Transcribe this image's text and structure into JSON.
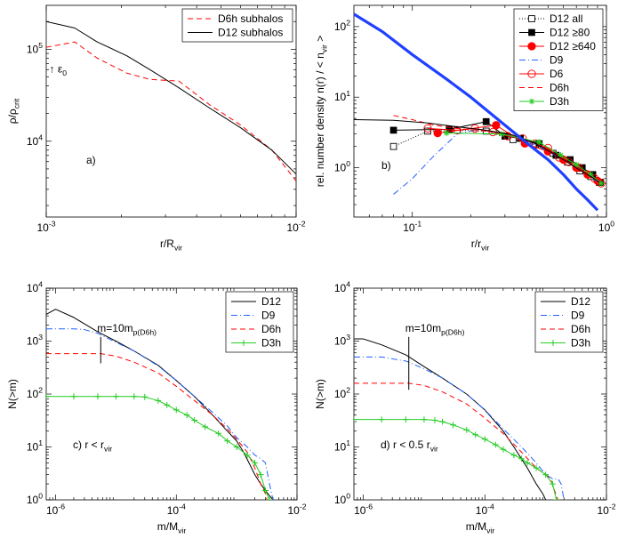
{
  "chart_data": [
    {
      "id": "a",
      "type": "line",
      "xscale": "log",
      "yscale": "log",
      "xlim": [
        0.001,
        0.01
      ],
      "ylim": [
        1500,
        300000
      ],
      "xlabel": "r/R_vir",
      "ylabel": "ρ/ρ_crit",
      "xticks": [
        {
          "v": 0.001,
          "label": "10^-3"
        },
        {
          "v": 0.01,
          "label": "10^-2"
        }
      ],
      "yticks": [
        {
          "v": 10000,
          "label": "10^4"
        },
        {
          "v": 100000,
          "label": "10^5"
        }
      ],
      "panel_label": "a)",
      "legend": "top-right",
      "annotations": [
        {
          "text": "↑ ε_0",
          "x": 0.00103,
          "y": 56000
        }
      ],
      "series": [
        {
          "name": "D6h subhalos",
          "color": "#ff0000",
          "dash": "6,4",
          "width": 1,
          "marker": "none",
          "x": [
            0.001,
            0.0013,
            0.0016,
            0.0021,
            0.0026,
            0.0034,
            0.0045,
            0.006,
            0.008,
            0.01
          ],
          "y": [
            105000,
            120000,
            80000,
            55000,
            47000,
            45000,
            25000,
            15000,
            8000,
            3700
          ]
        },
        {
          "name": "D12 subhalos",
          "color": "#000000",
          "dash": "",
          "width": 1,
          "marker": "none",
          "x": [
            0.001,
            0.0013,
            0.0016,
            0.0021,
            0.0026,
            0.0034,
            0.0045,
            0.006,
            0.008,
            0.01
          ],
          "y": [
            200000,
            170000,
            120000,
            85000,
            60000,
            38000,
            23000,
            14000,
            8000,
            4400
          ]
        }
      ]
    },
    {
      "id": "b",
      "type": "line",
      "xscale": "log",
      "yscale": "log",
      "xlim": [
        0.05,
        1
      ],
      "ylim": [
        0.2,
        200
      ],
      "xlabel": "r/r_vir",
      "ylabel": "rel. number density  n(r) / < n_vir >",
      "xticks": [
        {
          "v": 0.1,
          "label": "10^-1"
        },
        {
          "v": 1,
          "label": "10^0"
        }
      ],
      "yticks": [
        {
          "v": 1,
          "label": "10^0"
        },
        {
          "v": 10,
          "label": "10^1"
        },
        {
          "v": 100,
          "label": "10^2"
        }
      ],
      "panel_label": "b)",
      "legend": "top-right",
      "series": [
        {
          "name": "D12 all",
          "color": "#000000",
          "dash": "1,2",
          "width": 1,
          "marker": "square-open",
          "x": [
            0.08,
            0.12,
            0.17,
            0.24,
            0.33,
            0.43,
            0.53,
            0.63,
            0.73,
            0.83,
            0.92
          ],
          "y": [
            2.0,
            3.3,
            3.4,
            3.3,
            2.5,
            2.1,
            1.6,
            1.2,
            0.9,
            0.75,
            0.62
          ]
        },
        {
          "name": "D12 ≥80",
          "color": "#000000",
          "dash": "",
          "width": 1,
          "marker": "square-filled",
          "x": [
            0.08,
            0.155,
            0.24,
            0.3,
            0.36,
            0.45,
            0.55,
            0.65,
            0.75,
            0.85,
            0.93
          ],
          "y": [
            3.4,
            3.5,
            4.5,
            2.8,
            2.6,
            2.2,
            1.5,
            1.3,
            1.0,
            0.8,
            0.62
          ]
        },
        {
          "name": "D12 ≥640",
          "color": "#ff0000",
          "dash": "",
          "width": 1,
          "marker": "circle-filled",
          "x": [
            0.135,
            0.27,
            0.38,
            0.5,
            0.6,
            0.7,
            0.8,
            0.9
          ],
          "y": [
            3.1,
            4.0,
            2.2,
            1.7,
            1.3,
            1.0,
            0.8,
            0.65
          ]
        },
        {
          "name": "D9",
          "color": "#2060ff",
          "dash": "7,3,1,3",
          "width": 1,
          "marker": "none",
          "x": [
            0.08,
            0.1,
            0.13,
            0.17,
            0.22,
            0.3,
            0.4,
            0.5,
            0.6,
            0.7,
            0.8,
            0.9
          ],
          "y": [
            0.42,
            0.7,
            1.5,
            3.0,
            3.5,
            3.0,
            2.3,
            1.7,
            1.3,
            1.0,
            0.8,
            0.62
          ]
        },
        {
          "name": "D6",
          "color": "#ff0000",
          "dash": "",
          "width": 1,
          "marker": "circle-open",
          "x": [
            0.12,
            0.17,
            0.21,
            0.26,
            0.31,
            0.37,
            0.43,
            0.5,
            0.57,
            0.64,
            0.72,
            0.8,
            0.87,
            0.94
          ],
          "y": [
            3.6,
            3.4,
            3.6,
            3.2,
            2.8,
            2.6,
            2.2,
            1.9,
            1.4,
            1.2,
            1.0,
            0.8,
            0.7,
            0.6
          ]
        },
        {
          "name": "D6h",
          "color": "#ff0000",
          "dash": "6,4",
          "width": 1,
          "marker": "none",
          "x": [
            0.08,
            0.1,
            0.13,
            0.17,
            0.22,
            0.3,
            0.4,
            0.5,
            0.6,
            0.7,
            0.8,
            0.9
          ],
          "y": [
            5.5,
            4.8,
            4.0,
            3.6,
            3.4,
            3.0,
            2.4,
            1.8,
            1.3,
            1.0,
            0.8,
            0.65
          ]
        },
        {
          "name": "D3h",
          "color": "#22cc22",
          "dash": "",
          "width": 1,
          "marker": "asterisk",
          "x": [
            0.15,
            0.29,
            0.45,
            0.58,
            0.7,
            0.83,
            0.94
          ],
          "y": [
            3.1,
            3.0,
            2.3,
            1.5,
            1.1,
            0.8,
            0.6
          ]
        },
        {
          "name": "",
          "color": "#000000",
          "dash": "",
          "width": 1,
          "marker": "none",
          "x": [
            0.05,
            0.08,
            0.12,
            0.17,
            0.24,
            0.33,
            0.43,
            0.53,
            0.63,
            0.73,
            0.83,
            0.92
          ],
          "y": [
            4.8,
            4.7,
            4.3,
            3.8,
            3.4,
            2.9,
            2.2,
            1.6,
            1.2,
            0.92,
            0.75,
            0.62
          ]
        },
        {
          "name": "",
          "color": "#2040ff",
          "dash": "",
          "width": 3.2,
          "marker": "none",
          "x": [
            0.05,
            0.07,
            0.1,
            0.15,
            0.2,
            0.3,
            0.4,
            0.5,
            0.6,
            0.7,
            0.8,
            0.9
          ],
          "y": [
            150,
            85,
            40,
            18,
            10,
            4.0,
            2.1,
            1.3,
            0.8,
            0.5,
            0.35,
            0.25
          ]
        }
      ]
    },
    {
      "id": "c",
      "type": "line",
      "xscale": "log",
      "yscale": "log",
      "xlim": [
        7e-07,
        0.01
      ],
      "ylim": [
        1,
        10000
      ],
      "xlabel": "m/M_vir",
      "ylabel": "N(>m)",
      "xticks": [
        {
          "v": 1e-06,
          "label": "10^-6"
        },
        {
          "v": 0.0001,
          "label": "10^-4"
        },
        {
          "v": 0.01,
          "label": "10^-2"
        }
      ],
      "yticks": [
        {
          "v": 1,
          "label": "10^0"
        },
        {
          "v": 10,
          "label": "10^1"
        },
        {
          "v": 100,
          "label": "10^2"
        },
        {
          "v": 1000,
          "label": "10^3"
        },
        {
          "v": 10000,
          "label": "10^4"
        }
      ],
      "panel_label": "c) r < r_vir",
      "legend": "top-right",
      "annotations": [
        {
          "text": "m=10m_p(D6h)",
          "x": 5.6e-06,
          "y": 1500,
          "vline": true,
          "vline_from": 380,
          "vline_to": 1200
        }
      ],
      "series": [
        {
          "name": "D12",
          "color": "#000000",
          "dash": "",
          "width": 1,
          "marker": "none",
          "x": [
            7e-07,
            1e-06,
            2e-06,
            5e-06,
            1e-05,
            2e-05,
            5e-05,
            0.0001,
            0.0002,
            0.0004,
            0.0007,
            0.001,
            0.0013,
            0.0016,
            0.002,
            0.0025,
            0.003,
            0.0035,
            0.004
          ],
          "y": [
            3200,
            4000,
            2800,
            1500,
            1000,
            650,
            350,
            180,
            90,
            40,
            20,
            13,
            8,
            5,
            3,
            2,
            1.5,
            1.2,
            1
          ]
        },
        {
          "name": "D9",
          "color": "#2060ff",
          "dash": "7,3,1,3",
          "width": 1,
          "marker": "none",
          "x": [
            7e-07,
            2e-06,
            3e-06,
            5e-06,
            1e-05,
            2e-05,
            5e-05,
            0.0001,
            0.0002,
            0.0004,
            0.0007,
            0.001,
            0.0015,
            0.002,
            0.0025,
            0.003,
            0.0035,
            0.004
          ],
          "y": [
            1700,
            1700,
            1650,
            1400,
            950,
            650,
            340,
            180,
            90,
            45,
            25,
            15,
            10,
            7,
            6,
            5,
            2,
            1
          ]
        },
        {
          "name": "D6h",
          "color": "#ff0000",
          "dash": "6,4",
          "width": 1,
          "marker": "none",
          "x": [
            7e-07,
            3e-06,
            5.6e-06,
            1e-05,
            2e-05,
            5e-05,
            0.0001,
            0.0002,
            0.0004,
            0.0007,
            0.001,
            0.0015,
            0.002,
            0.0025,
            0.003,
            0.0032
          ],
          "y": [
            580,
            580,
            580,
            520,
            400,
            250,
            140,
            75,
            40,
            22,
            14,
            8,
            4,
            2,
            1.3,
            1
          ]
        },
        {
          "name": "D3h",
          "color": "#22cc22",
          "dash": "",
          "width": 1,
          "marker": "plus",
          "x": [
            7e-07,
            2e-06,
            5e-06,
            1e-05,
            2e-05,
            3e-05,
            5e-05,
            7e-05,
            0.0001,
            0.00015,
            0.0002,
            0.0003,
            0.0005,
            0.0007,
            0.001,
            0.0015,
            0.002,
            0.0025,
            0.003,
            0.0035
          ],
          "y": [
            90,
            90,
            90,
            90,
            90,
            88,
            75,
            62,
            50,
            40,
            32,
            24,
            18,
            13,
            10,
            7,
            5,
            3,
            1.5,
            1
          ]
        }
      ]
    },
    {
      "id": "d",
      "type": "line",
      "xscale": "log",
      "yscale": "log",
      "xlim": [
        7e-07,
        0.01
      ],
      "ylim": [
        1,
        10000
      ],
      "xlabel": "m/M_vir",
      "ylabel": "N(>m)",
      "xticks": [
        {
          "v": 1e-06,
          "label": "10^-6"
        },
        {
          "v": 0.0001,
          "label": "10^-4"
        },
        {
          "v": 0.01,
          "label": "10^-2"
        }
      ],
      "yticks": [
        {
          "v": 1,
          "label": "10^0"
        },
        {
          "v": 10,
          "label": "10^1"
        },
        {
          "v": 100,
          "label": "10^2"
        },
        {
          "v": 1000,
          "label": "10^3"
        },
        {
          "v": 10000,
          "label": "10^4"
        }
      ],
      "panel_label": "d) r < 0.5 r_vir",
      "legend": "top-right",
      "annotations": [
        {
          "text": "m=10m_p(D6h)",
          "x": 5.6e-06,
          "y": 1500,
          "vline": true,
          "vline_from": 120,
          "vline_to": 1200
        }
      ],
      "series": [
        {
          "name": "D12",
          "color": "#000000",
          "dash": "",
          "width": 1,
          "marker": "none",
          "x": [
            7e-07,
            1e-06,
            2e-06,
            5e-06,
            1e-05,
            2e-05,
            5e-05,
            0.0001,
            0.0002,
            0.0003,
            0.0005,
            0.0007,
            0.0009,
            0.001
          ],
          "y": [
            1100,
            1100,
            850,
            550,
            330,
            200,
            100,
            50,
            20,
            10,
            4,
            2,
            1.3,
            1
          ]
        },
        {
          "name": "D9",
          "color": "#2060ff",
          "dash": "7,3,1,3",
          "width": 1,
          "marker": "none",
          "x": [
            7e-07,
            2e-06,
            5e-06,
            1e-05,
            2e-05,
            5e-05,
            0.0001,
            0.0002,
            0.0004,
            0.0007,
            0.001,
            0.0013,
            0.0016,
            0.0018,
            0.002
          ],
          "y": [
            500,
            500,
            420,
            300,
            200,
            100,
            50,
            22,
            10,
            5,
            3,
            2.5,
            2.5,
            2,
            1
          ]
        },
        {
          "name": "D6h",
          "color": "#ff0000",
          "dash": "6,4",
          "width": 1,
          "marker": "none",
          "x": [
            7e-07,
            3e-06,
            5.6e-06,
            1e-05,
            2e-05,
            5e-05,
            0.0001,
            0.0002,
            0.0004,
            0.0007,
            0.001,
            0.0012,
            0.0014,
            0.0016
          ],
          "y": [
            160,
            160,
            160,
            145,
            110,
            65,
            35,
            18,
            8,
            4,
            3,
            2.5,
            1.5,
            1
          ]
        },
        {
          "name": "D3h",
          "color": "#22cc22",
          "dash": "",
          "width": 1,
          "marker": "plus",
          "x": [
            7e-07,
            2e-06,
            5e-06,
            1e-05,
            1.5e-05,
            2e-05,
            3e-05,
            5e-05,
            7e-05,
            0.0001,
            0.00015,
            0.0002,
            0.0003,
            0.0004,
            0.0005,
            0.0007,
            0.001,
            0.0013,
            0.0015
          ],
          "y": [
            33,
            33,
            33,
            33,
            32,
            30,
            26,
            21,
            17,
            14,
            11,
            9,
            7,
            6,
            5,
            4,
            3,
            2,
            1
          ]
        }
      ]
    }
  ]
}
